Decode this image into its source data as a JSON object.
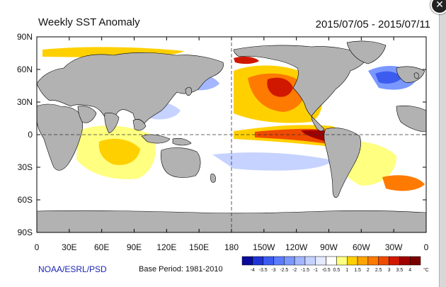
{
  "map": {
    "title": "Weekly SST Anomaly",
    "date_range": "2015/07/05 - 2015/07/11",
    "lat_labels": [
      "90N",
      "60N",
      "30N",
      "0",
      "30S",
      "60S",
      "90S"
    ],
    "lon_labels": [
      "0",
      "30E",
      "60E",
      "90E",
      "120E",
      "150E",
      "180",
      "150W",
      "120W",
      "90W",
      "60W",
      "30W",
      "0"
    ],
    "source": "NOAA/ESRL/PSD",
    "base_period": "Base Period: 1981-2010",
    "colorbar": {
      "ticks": [
        "-4",
        "-3.5",
        "-3",
        "-2.5",
        "-2",
        "-1.5",
        "-1",
        "-0.5",
        "0.5",
        "1",
        "1.5",
        "2",
        "2.5",
        "3",
        "3.5",
        "4"
      ],
      "unit": "°C",
      "colors": [
        "#0a0a9c",
        "#1f34d6",
        "#3c5cf0",
        "#5a7cff",
        "#7b98ff",
        "#a3b6ff",
        "#c6d2ff",
        "#e4eaff",
        "#ffffff",
        "#ffff80",
        "#ffd000",
        "#ffa500",
        "#ff7a00",
        "#f04a00",
        "#d01800",
        "#a00000",
        "#780000"
      ]
    },
    "colors": {
      "land": "#b2b2b2",
      "ocean": "#ffffff",
      "border": "#000000"
    }
  },
  "window": {
    "close_icon": "close-icon"
  }
}
